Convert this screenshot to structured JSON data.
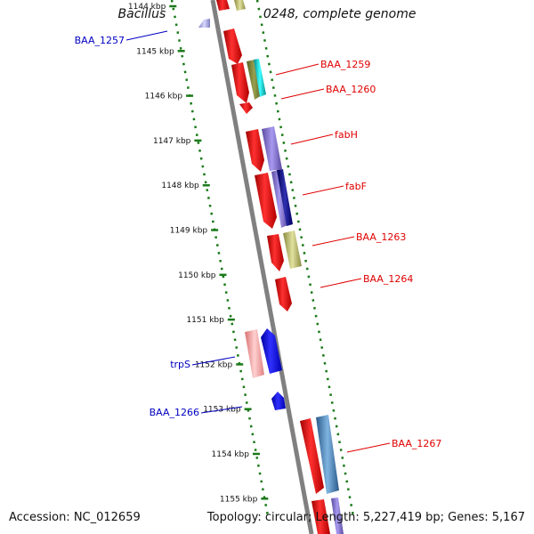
{
  "title": "Bacillus anthracis str. A0248, complete genome",
  "footer": {
    "accession": "Accession: NC_012659",
    "topology": "Topology: circular; Length: 5,227,419 bp; Genes: 5,167"
  },
  "ticks": [
    "1144 kbp",
    "1145 kbp",
    "1146 kbp",
    "1147 kbp",
    "1148 kbp",
    "1149 kbp",
    "1150 kbp",
    "1151 kbp",
    "1152 kbp",
    "1153 kbp",
    "1154 kbp",
    "1155 kbp"
  ],
  "colors": {
    "forward_label": "#e00000",
    "reverse_label": "#0000c0",
    "backbone": "#808080",
    "ticks": "#1a7a1a"
  },
  "labels": {
    "reverse": [
      "BAA_1257",
      "trpS",
      "BAA_1266"
    ],
    "forward": [
      "BAA_1259",
      "BAA_1260",
      "fabH",
      "fabF",
      "BAA_1263",
      "BAA_1264",
      "BAA_1267"
    ]
  }
}
